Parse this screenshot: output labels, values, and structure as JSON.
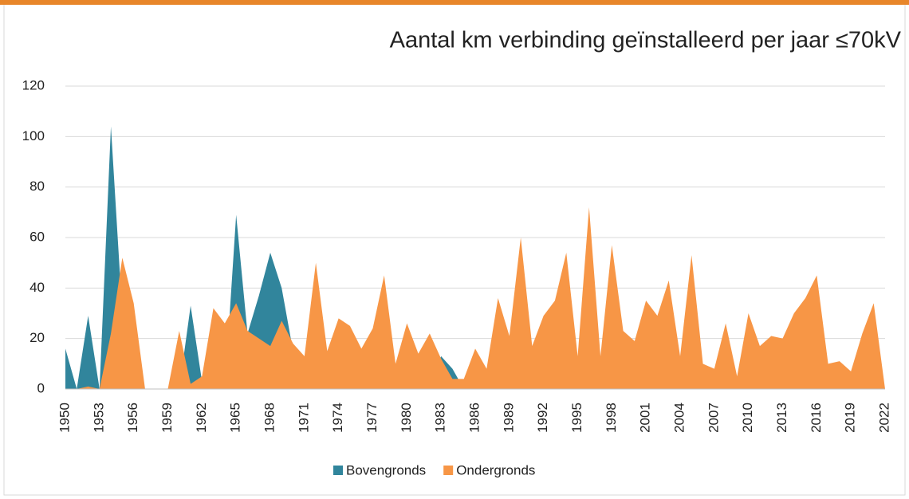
{
  "chart_data": {
    "type": "area",
    "title": "Aantal km verbinding geïnstalleerd per jaar  ≤70kV",
    "x": [
      1950,
      1951,
      1952,
      1953,
      1954,
      1955,
      1956,
      1957,
      1958,
      1959,
      1960,
      1961,
      1962,
      1963,
      1964,
      1965,
      1966,
      1967,
      1968,
      1969,
      1970,
      1971,
      1972,
      1973,
      1974,
      1975,
      1976,
      1977,
      1978,
      1979,
      1980,
      1981,
      1982,
      1983,
      1984,
      1985,
      1986,
      1987,
      1988,
      1989,
      1990,
      1991,
      1992,
      1993,
      1994,
      1995,
      1996,
      1997,
      1998,
      1999,
      2000,
      2001,
      2002,
      2003,
      2004,
      2005,
      2006,
      2007,
      2008,
      2009,
      2010,
      2011,
      2012,
      2013,
      2014,
      2015,
      2016,
      2017,
      2018,
      2019,
      2020,
      2021,
      2022
    ],
    "series": [
      {
        "name": "Bovengronds",
        "color": "#31859c",
        "values": [
          16,
          0,
          29,
          0,
          104,
          30,
          0,
          0,
          0,
          0,
          0,
          33,
          3,
          0,
          0,
          69,
          22,
          37,
          54,
          40,
          15,
          10,
          0,
          0,
          0,
          0,
          0,
          0,
          0,
          0,
          0,
          0,
          0,
          13,
          8,
          0,
          0,
          0,
          0,
          0,
          0,
          0,
          0,
          0,
          0,
          0,
          0,
          0,
          0,
          0,
          0,
          0,
          0,
          0,
          0,
          0,
          0,
          0,
          0,
          0,
          0,
          0,
          0,
          0,
          0,
          0,
          0,
          0,
          0,
          0,
          0,
          0,
          0
        ]
      },
      {
        "name": "Ondergronds",
        "color": "#f79646",
        "values": [
          0,
          0,
          1,
          0,
          22,
          52,
          34,
          0,
          0,
          0,
          23,
          2,
          5,
          32,
          26,
          34,
          23,
          20,
          17,
          27,
          18,
          13,
          50,
          15,
          28,
          25,
          16,
          24,
          45,
          10,
          26,
          14,
          22,
          12,
          4,
          4,
          16,
          8,
          36,
          21,
          60,
          17,
          29,
          35,
          54,
          13,
          72,
          13,
          57,
          23,
          19,
          35,
          29,
          43,
          13,
          53,
          10,
          8,
          26,
          5,
          30,
          17,
          21,
          20,
          30,
          36,
          45,
          10,
          11,
          7,
          22,
          34,
          0
        ]
      }
    ],
    "xlim": [
      1950,
      2022
    ],
    "xticks": [
      1950,
      1953,
      1956,
      1959,
      1962,
      1965,
      1968,
      1971,
      1974,
      1977,
      1980,
      1983,
      1986,
      1989,
      1992,
      1995,
      1998,
      2001,
      2004,
      2007,
      2010,
      2013,
      2016,
      2019,
      2022
    ],
    "ylim": [
      0,
      120
    ],
    "yticks": [
      0,
      20,
      40,
      60,
      80,
      100,
      120
    ],
    "grid": true,
    "legend": "bottom"
  }
}
